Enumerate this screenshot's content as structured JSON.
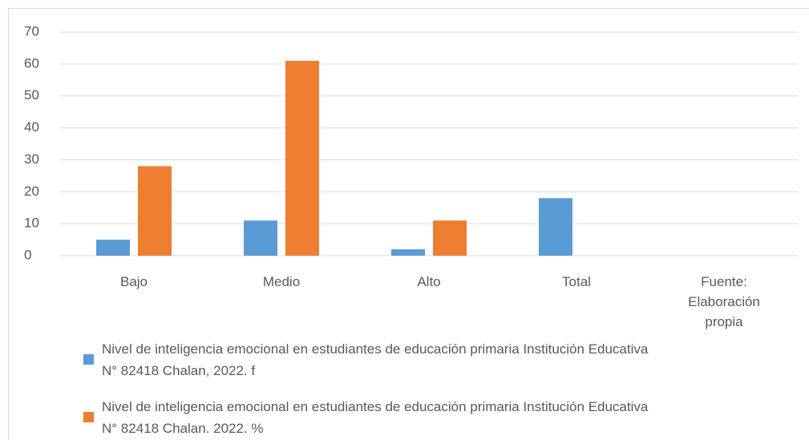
{
  "chart_data": {
    "type": "bar",
    "categories": [
      "Bajo",
      "Medio",
      "Alto",
      "Total",
      "Fuente: Elaboración propia"
    ],
    "series": [
      {
        "name": "Nivel de inteligencia emocional en estudiantes de educación primaria Institución Educativa N° 82418 Chalan, 2022. f",
        "color": "#5b9bd5",
        "values": [
          5,
          11,
          2,
          18,
          null
        ]
      },
      {
        "name": "Nivel de inteligencia emocional en estudiantes de educación primaria Institución Educativa N° 82418 Chalan. 2022. %",
        "color": "#ed7d31",
        "values": [
          28,
          61,
          11,
          null,
          null
        ]
      }
    ],
    "ylim": [
      0,
      70
    ],
    "yticks": [
      0,
      10,
      20,
      30,
      40,
      50,
      60,
      70
    ],
    "grid": true,
    "legend": "bottom"
  }
}
